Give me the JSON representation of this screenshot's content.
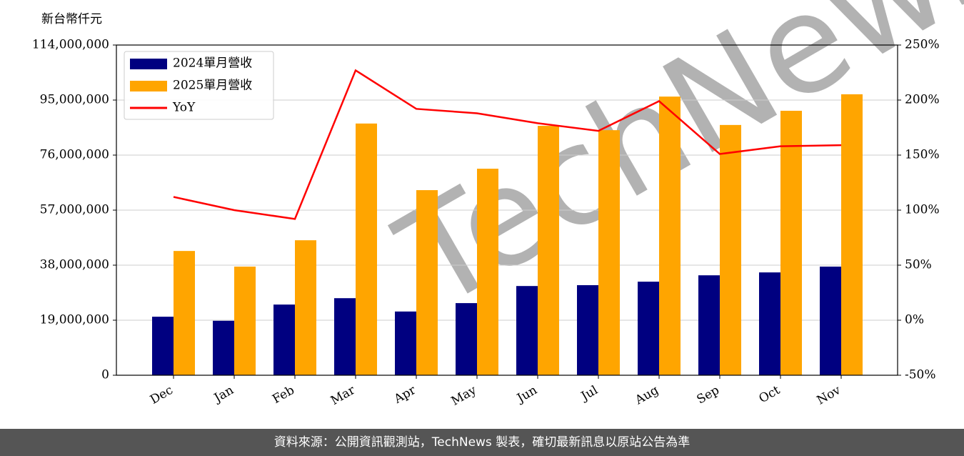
{
  "chart_data": {
    "type": "bar_line",
    "unit_label": "新台幣仟元",
    "watermark": "TechNews",
    "source": "資料來源：公開資訊觀測站，TechNews 製表，確切最新訊息以原站公告為準",
    "categories": [
      "Dec",
      "Jan",
      "Feb",
      "Mar",
      "Apr",
      "May",
      "Jun",
      "Jul",
      "Aug",
      "Sep",
      "Oct",
      "Nov"
    ],
    "series": [
      {
        "name": "2024單月營收",
        "color": "#000080",
        "type": "bar",
        "values": [
          20200000,
          18800000,
          24400000,
          26600000,
          22000000,
          24900000,
          30800000,
          31100000,
          32300000,
          34500000,
          35500000,
          37500000
        ]
      },
      {
        "name": "2025單月營收",
        "color": "#ffa500",
        "type": "bar",
        "values": [
          42900000,
          37500000,
          46600000,
          86900000,
          63900000,
          71300000,
          86100000,
          84600000,
          96200000,
          86400000,
          91300000,
          97000000
        ]
      },
      {
        "name": "YoY",
        "color": "#ff0000",
        "type": "line",
        "axis": "y2",
        "values": [
          112,
          100,
          92,
          227,
          192,
          188,
          179,
          172,
          199,
          151,
          158,
          159
        ]
      }
    ],
    "ylim": [
      0,
      114000000
    ],
    "yticks": [
      0,
      {
        "value": 19000000,
        "label": "19,000,000"
      },
      {
        "value": 38000000,
        "label": "38,000,000"
      },
      {
        "value": 57000000,
        "label": "57,000,000"
      },
      {
        "value": 76000000,
        "label": "76,000,000"
      },
      {
        "value": 95000000,
        "label": "95,000,000"
      },
      {
        "value": 114000000,
        "label": "114,000,000"
      }
    ],
    "y2lim": [
      -50,
      250
    ],
    "y2ticks": [
      {
        "value": -50,
        "label": "-50%"
      },
      {
        "value": 0,
        "label": "0%"
      },
      {
        "value": 50,
        "label": "50%"
      },
      {
        "value": 100,
        "label": "100%"
      },
      {
        "value": 150,
        "label": "150%"
      },
      {
        "value": 200,
        "label": "200%"
      },
      {
        "value": 250,
        "label": "250%"
      }
    ],
    "grid": true,
    "legend": "upper-left"
  }
}
